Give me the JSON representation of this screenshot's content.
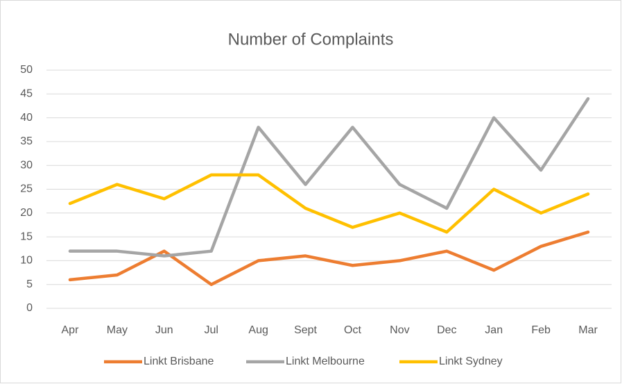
{
  "chart_data": {
    "type": "line",
    "title": "Number of Complaints",
    "categories": [
      "Apr",
      "May",
      "Jun",
      "Jul",
      "Aug",
      "Sept",
      "Oct",
      "Nov",
      "Dec",
      "Jan",
      "Feb",
      "Mar"
    ],
    "series": [
      {
        "name": "Linkt Brisbane",
        "color": "#ED7D31",
        "values": [
          6,
          7,
          12,
          5,
          10,
          11,
          9,
          10,
          12,
          8,
          13,
          16
        ]
      },
      {
        "name": "Linkt Melbourne",
        "color": "#A5A5A5",
        "values": [
          12,
          12,
          11,
          12,
          38,
          26,
          38,
          26,
          21,
          40,
          29,
          44
        ]
      },
      {
        "name": "Linkt Sydney",
        "color": "#FFC000",
        "values": [
          22,
          26,
          23,
          28,
          28,
          21,
          17,
          20,
          16,
          25,
          20,
          24
        ]
      }
    ],
    "ylim": [
      0,
      50
    ],
    "yticks": [
      0,
      5,
      10,
      15,
      20,
      25,
      30,
      35,
      40,
      45,
      50
    ],
    "grid": true,
    "legend": "bottom"
  }
}
